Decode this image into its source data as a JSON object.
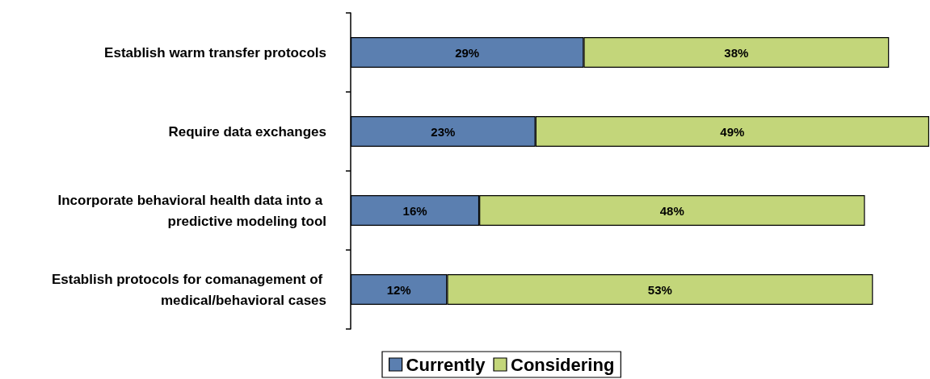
{
  "chart_data": {
    "type": "bar",
    "orientation": "horizontal",
    "stacked": true,
    "legend": "bottom",
    "grid": false,
    "categories": [
      "Establish warm transfer protocols",
      "Require data exchanges",
      "Incorporate behavioral health data into a predictive modeling tool",
      "Establish protocols for comanagement of medical/behavioral cases"
    ],
    "series": [
      {
        "name": "Currently",
        "color": "#5b7fb0",
        "values": [
          29,
          23,
          16,
          12
        ],
        "value_labels": [
          "29%",
          "23%",
          "16%",
          "12%"
        ]
      },
      {
        "name": "Considering",
        "color": "#c3d67a",
        "values": [
          38,
          49,
          48,
          53
        ],
        "value_labels": [
          "38%",
          "49%",
          "48%",
          "53%"
        ]
      }
    ]
  }
}
